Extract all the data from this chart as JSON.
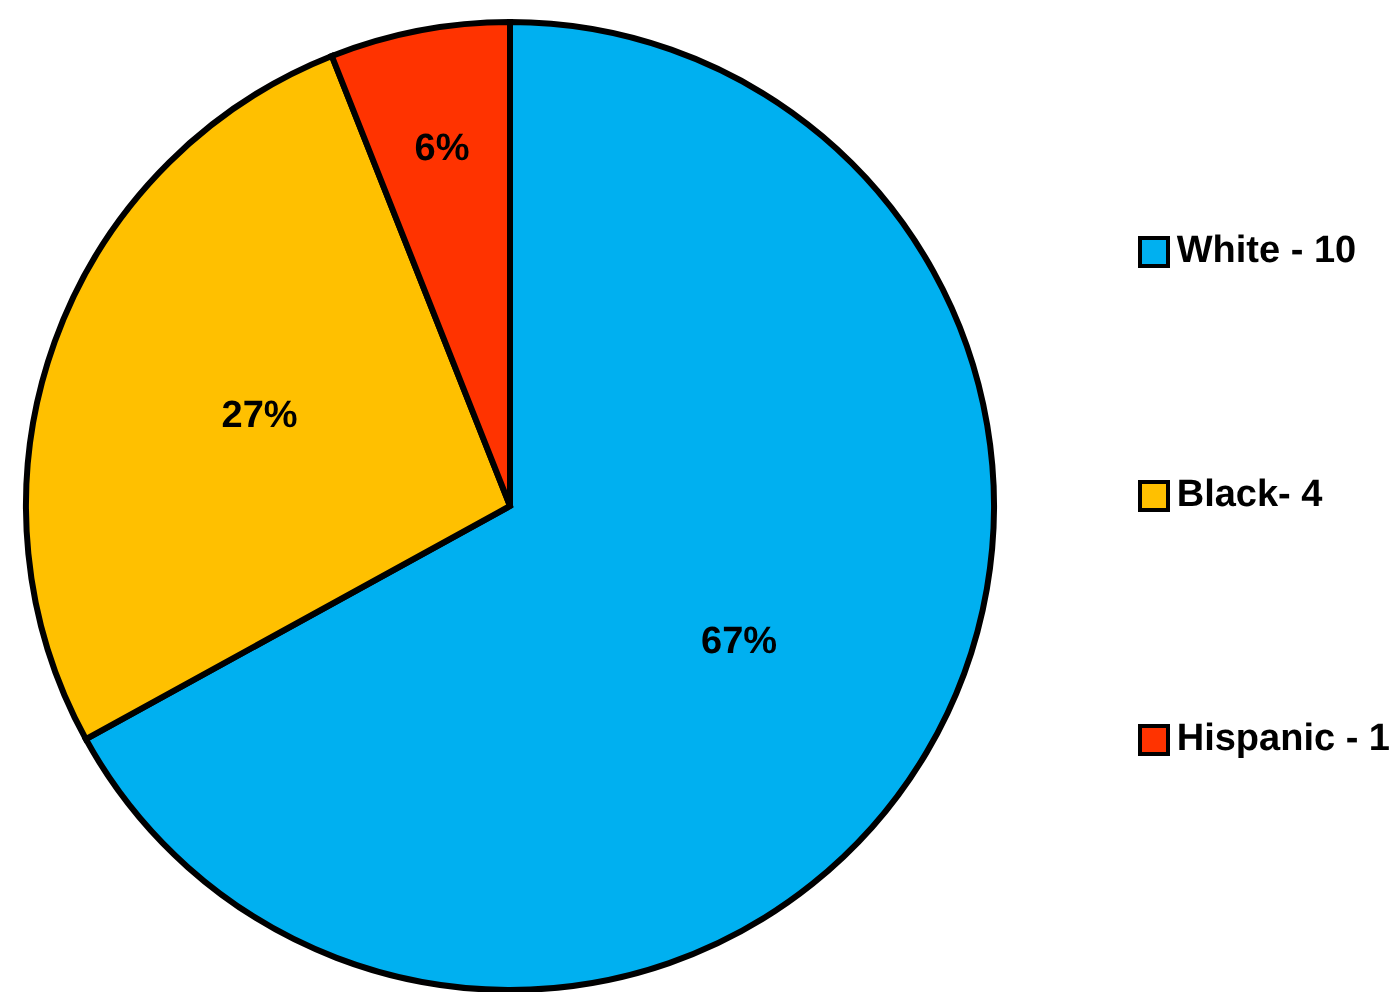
{
  "chart_data": {
    "type": "pie",
    "categories": [
      "White - 10",
      "Black- 4",
      "Hispanic - 1"
    ],
    "values": [
      67,
      27,
      6
    ],
    "colors": [
      "#00b0f0",
      "#ffc000",
      "#ff3300"
    ],
    "value_labels": [
      "67%",
      "27%",
      "6%"
    ],
    "legend": "right"
  }
}
